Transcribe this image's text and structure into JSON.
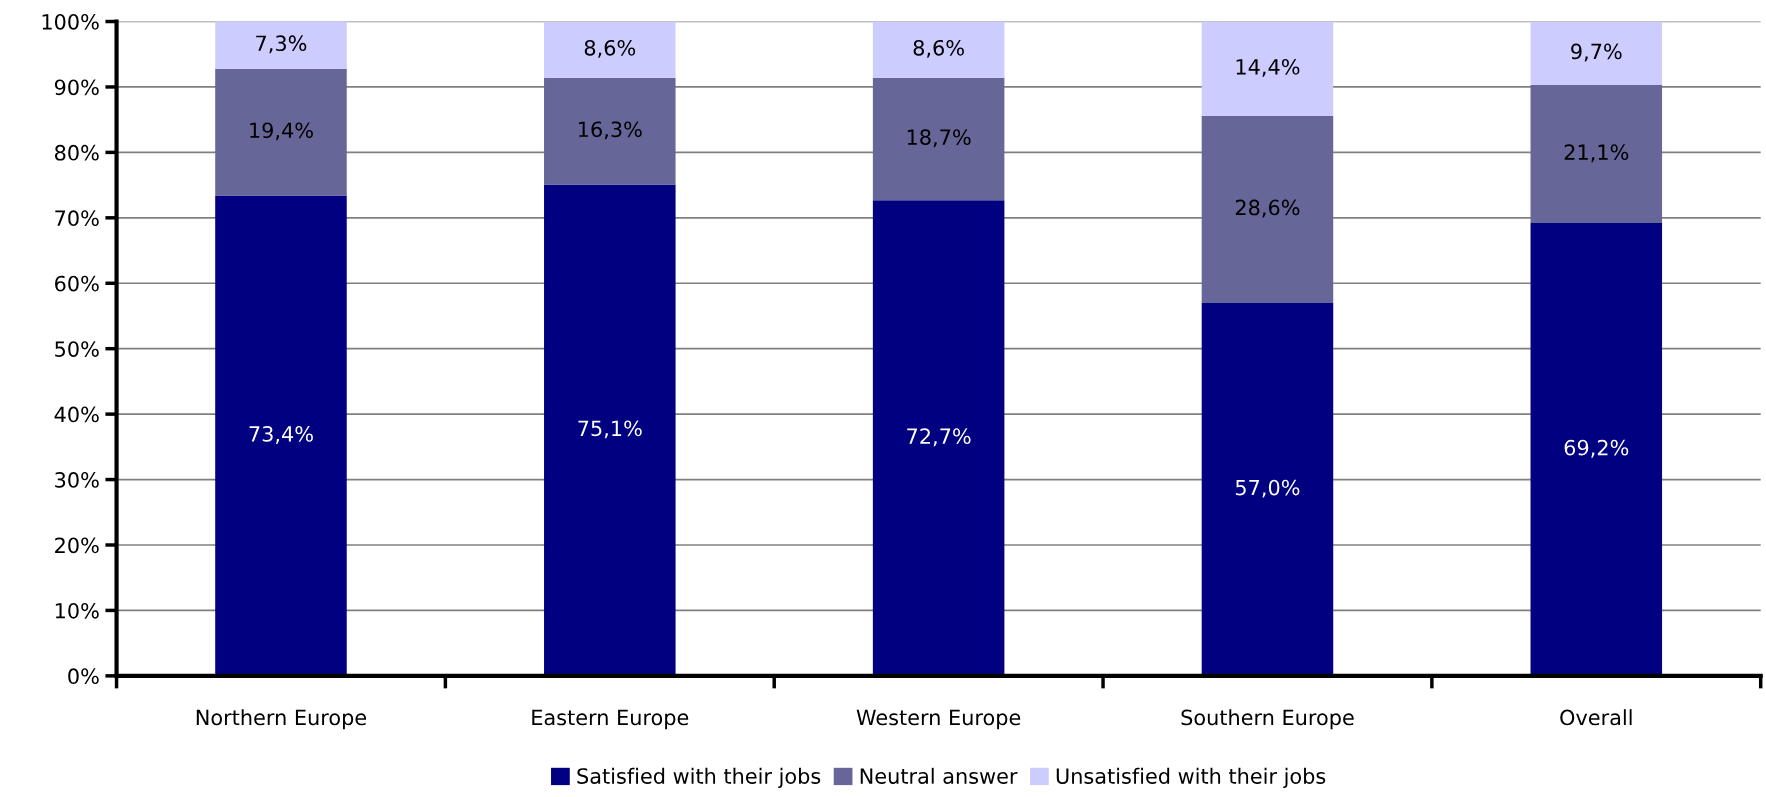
{
  "chart_data": {
    "type": "bar",
    "stacked": true,
    "categories": [
      "Northern Europe",
      "Eastern Europe",
      "Western Europe",
      "Southern Europe",
      "Overall"
    ],
    "series": [
      {
        "name": "Satisfied with their jobs",
        "color": "#000080",
        "values": [
          73.4,
          75.1,
          72.7,
          57.0,
          69.2
        ],
        "value_labels": [
          "73,4%",
          "75,1%",
          "72,7%",
          "57,0%",
          "69,2%"
        ]
      },
      {
        "name": "Neutral answer",
        "color": "#666699",
        "values": [
          19.4,
          16.3,
          18.7,
          28.6,
          21.1
        ],
        "value_labels": [
          "19,4%",
          "16,3%",
          "18,7%",
          "28,6%",
          "21,1%"
        ]
      },
      {
        "name": "Unsatisfied with their jobs",
        "color": "#ccccff",
        "values": [
          7.3,
          8.6,
          8.6,
          14.4,
          9.7
        ],
        "value_labels": [
          "7,3%",
          "8,6%",
          "8,6%",
          "14,4%",
          "9,7%"
        ]
      }
    ],
    "ylim": [
      0,
      100
    ],
    "yticks": [
      {
        "value": 0,
        "label": "0%"
      },
      {
        "value": 10,
        "label": "10%"
      },
      {
        "value": 20,
        "label": "20%"
      },
      {
        "value": 30,
        "label": "30%"
      },
      {
        "value": 40,
        "label": "40%"
      },
      {
        "value": 50,
        "label": "50%"
      },
      {
        "value": 60,
        "label": "60%"
      },
      {
        "value": 70,
        "label": "70%"
      },
      {
        "value": 80,
        "label": "80%"
      },
      {
        "value": 90,
        "label": "90%"
      },
      {
        "value": 100,
        "label": "100%"
      }
    ],
    "grid": "y",
    "legend": "bottom"
  }
}
